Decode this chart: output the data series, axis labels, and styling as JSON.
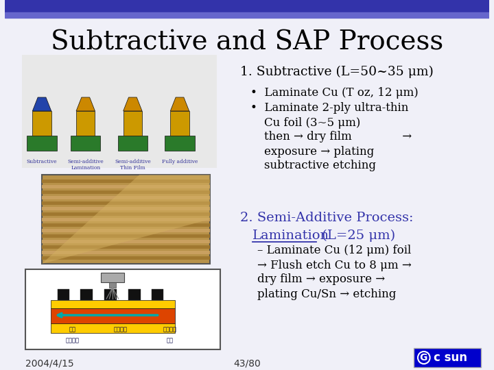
{
  "title": "Subtractive and SAP Process",
  "title_fontsize": 28,
  "title_font": "serif",
  "bg_color": "#f0f0f8",
  "top_bar_color": "#3333aa",
  "header_bar_color": "#5555cc",
  "text_color": "#000000",
  "section1_title": "1. Subtractive (L=50~35 μm)",
  "section1_color": "#000000",
  "bullet1": "Laminate Cu (T oz, 12 μm)",
  "bullet2_lines": [
    "Laminate 2-ply ultra-thin",
    "Cu foil (3~5 μm)",
    "then → dry film              →",
    "exposure → plating",
    "subtractive etching"
  ],
  "section2_title_pre": "2. Semi-Additive Process:",
  "section2_title_under": "Lamination",
  "section2_title_post": " (L=25 μm)",
  "section2_color": "#3333aa",
  "bullet3_lines": [
    "– Laminate Cu (12 μm) foil",
    "→ Flush etch Cu to 8 μm →",
    "dry film → exposure →",
    "plating Cu/Sn → etching"
  ],
  "footer_date": "2004/4/15",
  "footer_page": "43/80",
  "logo_text": "c sun",
  "logo_bg": "#0000cc",
  "logo_text_color": "#ffffff"
}
